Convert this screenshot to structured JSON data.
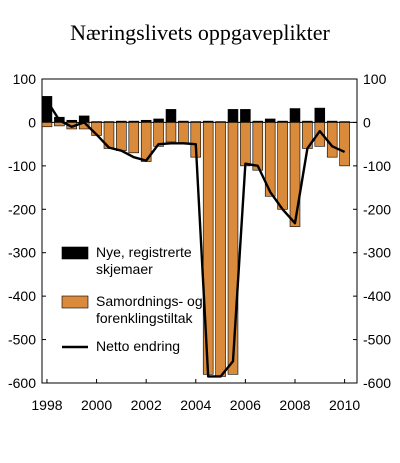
{
  "chart_data": {
    "type": "bar",
    "title": "Næringslivets oppgaveplikter",
    "xlabel": "",
    "ylabel": "",
    "ylim": [
      -600,
      100
    ],
    "yticks": [
      100,
      0,
      -100,
      -200,
      -300,
      -400,
      -500,
      -600
    ],
    "ytick_labels": [
      "100",
      "0",
      "-100",
      "-200",
      "-300",
      "-400",
      "-500",
      "-600"
    ],
    "x": [
      1998,
      1998.5,
      1999,
      1999.5,
      2000,
      2000.5,
      2001,
      2001.5,
      2002,
      2002.5,
      2003,
      2003.5,
      2004,
      2004.5,
      2005,
      2005.5,
      2006,
      2006.5,
      2007,
      2007.5,
      2008,
      2008.5,
      2009,
      2009.5,
      2010
    ],
    "xticks": [
      1998,
      2000,
      2002,
      2004,
      2006,
      2008,
      2010
    ],
    "xtick_labels": [
      "1998",
      "2000",
      "2002",
      "2004",
      "2006",
      "2008",
      "2010"
    ],
    "grid": false,
    "legend_position": "bottom-left",
    "series": [
      {
        "name": "Nye, registrerte skjemaer",
        "kind": "bar",
        "color": "#000000",
        "values": [
          60,
          12,
          5,
          15,
          2,
          2,
          3,
          3,
          5,
          8,
          30,
          3,
          2,
          3,
          2,
          30,
          30,
          3,
          8,
          3,
          32,
          3,
          33,
          3,
          2
        ]
      },
      {
        "name": "Samordnings- og forenklingstiltak",
        "kind": "bar",
        "color": "#d98a3a",
        "values": [
          -10,
          -8,
          -15,
          -15,
          -30,
          -60,
          -65,
          -70,
          -90,
          -55,
          -45,
          -50,
          -80,
          -580,
          -585,
          -580,
          -100,
          -110,
          -170,
          -200,
          -240,
          -60,
          -55,
          -80,
          -100
        ]
      },
      {
        "name": "Netto endring",
        "kind": "line",
        "color": "#000000",
        "values": [
          50,
          5,
          -10,
          0,
          -28,
          -58,
          -65,
          -80,
          -88,
          -50,
          -48,
          -48,
          -50,
          -585,
          -585,
          -550,
          -95,
          -100,
          -160,
          -200,
          -232,
          -60,
          -20,
          -55,
          -68
        ]
      }
    ],
    "legend_labels": [
      [
        "Nye, registrerte",
        "skjemaer"
      ],
      [
        "Samordnings- og",
        "forenklingstiltak"
      ],
      [
        "Netto endring"
      ]
    ]
  }
}
